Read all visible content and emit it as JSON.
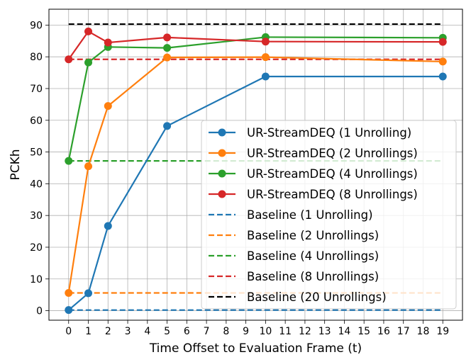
{
  "chart_data": {
    "type": "line",
    "xlabel": "Time Offset to Evaluation Frame (t)",
    "ylabel": "PCKh",
    "xlim": [
      -1,
      20
    ],
    "ylim": [
      -3,
      95
    ],
    "xticks": [
      0,
      1,
      2,
      3,
      4,
      5,
      6,
      7,
      8,
      9,
      10,
      11,
      12,
      13,
      14,
      15,
      16,
      17,
      18,
      19
    ],
    "yticks": [
      0,
      10,
      20,
      30,
      40,
      50,
      60,
      70,
      80,
      90
    ],
    "grid": true,
    "legend_position": "lower-right",
    "series": [
      {
        "name": "UR-StreamDEQ (1 Unrolling)",
        "color": "#1f77b4",
        "style": "solid-marker",
        "x": [
          0,
          1,
          2,
          5,
          10,
          19
        ],
        "y": [
          0.2,
          5.5,
          26.7,
          58.2,
          73.8,
          73.8
        ]
      },
      {
        "name": "UR-StreamDEQ (2 Unrollings)",
        "color": "#ff7f0e",
        "style": "solid-marker",
        "x": [
          0,
          1,
          2,
          5,
          10,
          19
        ],
        "y": [
          5.6,
          45.5,
          64.5,
          79.8,
          79.9,
          78.5
        ]
      },
      {
        "name": "UR-StreamDEQ (4 Unrollings)",
        "color": "#2ca02c",
        "style": "solid-marker",
        "x": [
          0,
          1,
          2,
          5,
          10,
          19
        ],
        "y": [
          47.2,
          78.2,
          83.1,
          82.8,
          86.2,
          86.0
        ]
      },
      {
        "name": "UR-StreamDEQ (8 Unrollings)",
        "color": "#d62728",
        "style": "solid-marker",
        "x": [
          0,
          1,
          2,
          5,
          10,
          19
        ],
        "y": [
          79.2,
          88.0,
          84.5,
          86.1,
          84.8,
          84.7
        ]
      },
      {
        "name": "Baseline (1 Unrolling)",
        "color": "#1f77b4",
        "style": "dashed",
        "y_const": 0.2
      },
      {
        "name": "Baseline (2 Unrollings)",
        "color": "#ff7f0e",
        "style": "dashed",
        "y_const": 5.6
      },
      {
        "name": "Baseline (4 Unrollings)",
        "color": "#2ca02c",
        "style": "dashed",
        "y_const": 47.2
      },
      {
        "name": "Baseline (8 Unrollings)",
        "color": "#d62728",
        "style": "dashed",
        "y_const": 79.2
      },
      {
        "name": "Baseline (20 Unrollings)",
        "color": "#000000",
        "style": "dashed",
        "y_const": 90.3
      }
    ]
  }
}
